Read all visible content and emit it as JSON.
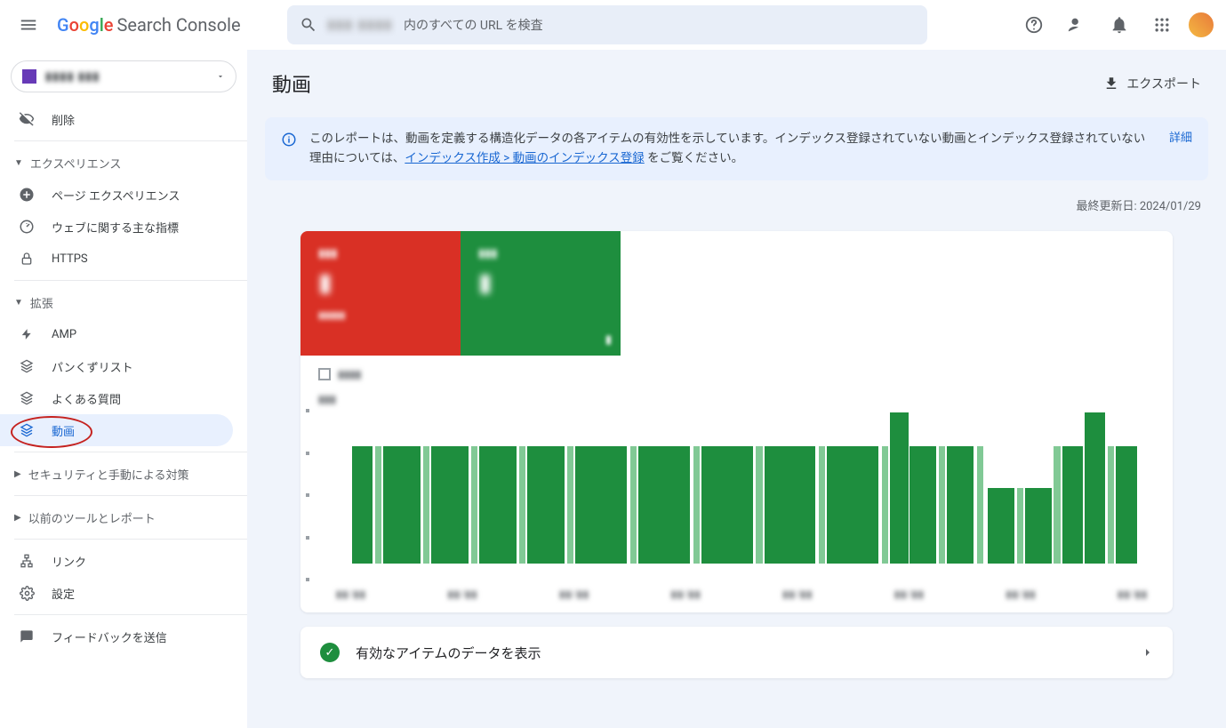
{
  "header": {
    "logo_text": "Search Console",
    "search_prefix": "▮▮▮ ▮▮▮▮",
    "search_placeholder": "内のすべての URL を検査"
  },
  "sidebar": {
    "property_name": "▮▮▮▮ ▮▮▮",
    "items_top": [
      {
        "label": "削除",
        "icon": "eye-off"
      }
    ],
    "section_experience": "エクスペリエンス",
    "items_experience": [
      {
        "label": "ページ エクスペリエンス",
        "icon": "circle-plus"
      },
      {
        "label": "ウェブに関する主な指標",
        "icon": "speed"
      },
      {
        "label": "HTTPS",
        "icon": "lock"
      }
    ],
    "section_enhancements": "拡張",
    "items_enhancements": [
      {
        "label": "AMP",
        "icon": "bolt"
      },
      {
        "label": "パンくずリスト",
        "icon": "layers"
      },
      {
        "label": "よくある質問",
        "icon": "layers"
      },
      {
        "label": "動画",
        "icon": "layers",
        "active": true
      }
    ],
    "section_security": "セキュリティと手動による対策",
    "section_legacy": "以前のツールとレポート",
    "item_links": "リンク",
    "item_settings": "設定",
    "item_feedback": "フィードバックを送信"
  },
  "page": {
    "title": "動画",
    "export": "エクスポート",
    "banner_text_1": "このレポートは、動画を定義する構造化データの各アイテムの有効性を示しています。インデックス登録されていない動画とインデックス登録されていない理由については、",
    "banner_link": "インデックス作成 > 動画のインデックス登録",
    "banner_text_2": " をご覧ください。",
    "banner_detail": "詳細",
    "last_updated_label": "最終更新日: ",
    "last_updated_value": "2024/01/29",
    "drill_title": "有効なアイテムのデータを表示"
  },
  "status_cards": {
    "red": {
      "label": "▮▮▮",
      "value": "▮",
      "sub": "▮▮▮▮▮",
      "bg_color": "#d93025"
    },
    "green": {
      "label": "▮▮▮",
      "value": "▮",
      "bg_color": "#1e8e3e",
      "ext": "▮"
    }
  },
  "chart": {
    "type": "bar",
    "background_color": "#ffffff",
    "bar_color_dark": "#1e8e3e",
    "bar_color_light": "#81c995",
    "ylim": [
      0,
      100
    ],
    "bars": [
      {
        "x": 3.0,
        "h": 78,
        "w": 2.5,
        "light": false
      },
      {
        "x": 5.8,
        "h": 78,
        "w": 0.8,
        "light": true
      },
      {
        "x": 6.8,
        "h": 78,
        "w": 4.5,
        "light": false
      },
      {
        "x": 11.6,
        "h": 78,
        "w": 0.8,
        "light": true
      },
      {
        "x": 12.6,
        "h": 78,
        "w": 4.5,
        "light": false
      },
      {
        "x": 17.4,
        "h": 78,
        "w": 0.8,
        "light": true
      },
      {
        "x": 18.4,
        "h": 78,
        "w": 4.5,
        "light": false
      },
      {
        "x": 23.2,
        "h": 78,
        "w": 0.8,
        "light": true
      },
      {
        "x": 24.2,
        "h": 78,
        "w": 4.5,
        "light": false
      },
      {
        "x": 29.0,
        "h": 78,
        "w": 0.8,
        "light": true
      },
      {
        "x": 30.0,
        "h": 78,
        "w": 6.2,
        "light": false
      },
      {
        "x": 36.6,
        "h": 78,
        "w": 0.8,
        "light": true
      },
      {
        "x": 37.6,
        "h": 78,
        "w": 6.2,
        "light": false
      },
      {
        "x": 44.2,
        "h": 78,
        "w": 0.8,
        "light": true
      },
      {
        "x": 45.2,
        "h": 78,
        "w": 6.2,
        "light": false
      },
      {
        "x": 51.8,
        "h": 78,
        "w": 0.8,
        "light": true
      },
      {
        "x": 52.8,
        "h": 78,
        "w": 6.2,
        "light": false
      },
      {
        "x": 59.4,
        "h": 78,
        "w": 0.8,
        "light": true
      },
      {
        "x": 60.4,
        "h": 78,
        "w": 6.2,
        "light": false
      },
      {
        "x": 67.0,
        "h": 78,
        "w": 0.8,
        "light": true
      },
      {
        "x": 68.0,
        "h": 100,
        "w": 2.2,
        "light": false
      },
      {
        "x": 70.4,
        "h": 78,
        "w": 3.2,
        "light": false
      },
      {
        "x": 73.9,
        "h": 78,
        "w": 0.8,
        "light": true
      },
      {
        "x": 74.9,
        "h": 78,
        "w": 3.2,
        "light": false
      },
      {
        "x": 78.5,
        "h": 78,
        "w": 0.8,
        "light": true
      },
      {
        "x": 79.8,
        "h": 50,
        "w": 3.2,
        "light": false
      },
      {
        "x": 83.3,
        "h": 50,
        "w": 0.8,
        "light": true
      },
      {
        "x": 84.3,
        "h": 50,
        "w": 3.2,
        "light": false
      },
      {
        "x": 87.8,
        "h": 78,
        "w": 0.8,
        "light": true
      },
      {
        "x": 88.8,
        "h": 78,
        "w": 2.5,
        "light": false
      },
      {
        "x": 91.5,
        "h": 100,
        "w": 2.5,
        "light": false
      },
      {
        "x": 94.3,
        "h": 78,
        "w": 0.8,
        "light": true
      },
      {
        "x": 95.3,
        "h": 78,
        "w": 2.5,
        "light": false
      }
    ],
    "x_labels": [
      "▮▮/▮▮",
      "▮▮/▮▮",
      "▮▮/▮▮",
      "▮▮/▮▮",
      "▮▮/▮▮",
      "▮▮/▮▮",
      "▮▮/▮▮",
      "▮▮/▮▮"
    ]
  }
}
